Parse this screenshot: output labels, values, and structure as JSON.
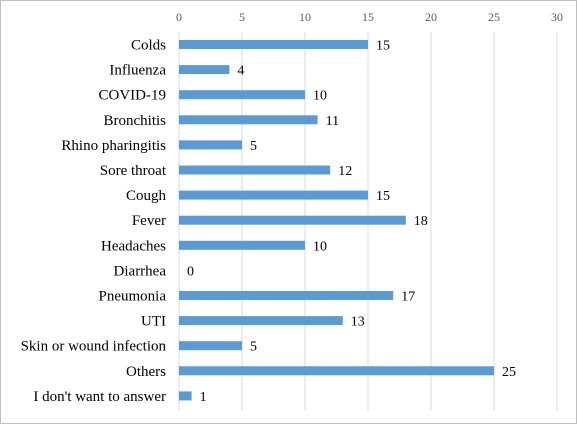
{
  "chart_data": {
    "type": "bar",
    "orientation": "horizontal",
    "title": "",
    "xlabel": "",
    "ylabel": "",
    "categories": [
      "Colds",
      "Influenza",
      "COVID-19",
      "Bronchitis",
      "Rhino pharingitis",
      "Sore throat",
      "Cough",
      "Fever",
      "Headaches",
      "Diarrhea",
      "Pneumonia",
      "UTI",
      "Skin or wound infection",
      "Others",
      "I don't want to answer"
    ],
    "values": [
      15,
      4,
      10,
      11,
      5,
      12,
      15,
      18,
      10,
      0,
      17,
      13,
      5,
      25,
      1
    ],
    "xlim": [
      0,
      30
    ],
    "xticks": [
      0,
      5,
      10,
      15,
      20,
      25,
      30
    ],
    "x_axis_position": "top",
    "grid": "vertical",
    "legend": "none",
    "data_labels": true,
    "bar_color": "#5b9bd5",
    "grid_color": "#d9d9d9"
  }
}
